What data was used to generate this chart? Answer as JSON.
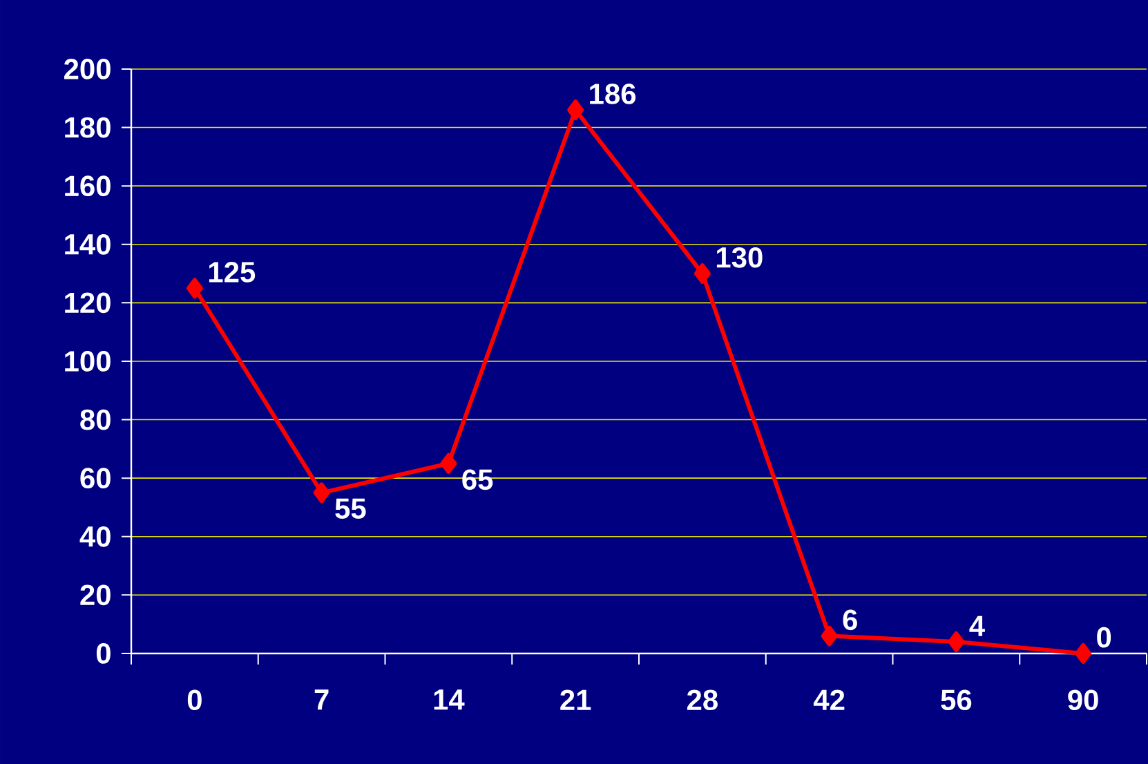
{
  "chart_data": {
    "type": "line",
    "categories": [
      "0",
      "7",
      "14",
      "21",
      "28",
      "42",
      "56",
      "90"
    ],
    "series": [
      {
        "color": "#ff0000",
        "values": [
          125,
          55,
          65,
          186,
          130,
          6,
          4,
          0
        ]
      }
    ],
    "ylim": [
      0,
      200
    ],
    "yticks": [
      0,
      20,
      40,
      60,
      80,
      100,
      120,
      140,
      160,
      180,
      200
    ],
    "grid": "y",
    "marker": "diamond",
    "line_style": "solid",
    "data_labels": true
  }
}
